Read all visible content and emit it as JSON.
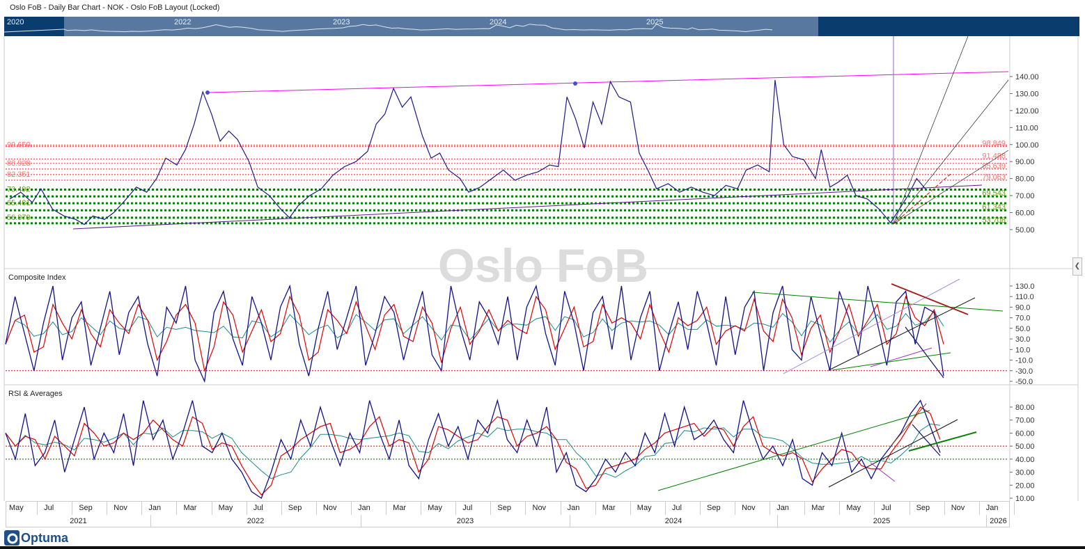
{
  "window": {
    "title": "Oslo FoB - Daily Bar Chart - NOK - Oslo FoB Layout (Locked)"
  },
  "navigator": {
    "years": [
      "2020",
      "2022",
      "2023",
      "2024",
      "2025"
    ]
  },
  "watermark": "Oslo FoB",
  "panels": {
    "composite": "Composite Index",
    "rsi": "RSI & Averages"
  },
  "logo": "Optuma",
  "colors": {
    "price": "#1a1a8c",
    "fast": "#e00000",
    "slow": "#1a8c8c",
    "fib_red": "#ff4040",
    "fib_green": "#008000"
  },
  "chart_data": [
    {
      "type": "line",
      "title": "Oslo FoB Daily",
      "ylim": [
        45,
        145
      ],
      "yticks": [
        "140.00",
        "130.00",
        "120.00",
        "110.00",
        "100.00",
        "90.00",
        "80.00",
        "70.00",
        "60.00",
        "50.00"
      ],
      "fib_left": [
        {
          "label": "99.650",
          "value": 99.65,
          "kind": "red"
        },
        {
          "label": "88.928",
          "value": 88.93,
          "kind": "red"
        },
        {
          "label": "82.351",
          "value": 82.35,
          "kind": "red"
        },
        {
          "label": "73.492",
          "value": 73.49,
          "kind": "green"
        },
        {
          "label": "65.481",
          "value": 65.48,
          "kind": "green"
        },
        {
          "label": "56.979",
          "value": 56.98,
          "kind": "green"
        }
      ],
      "fib_right": [
        {
          "label": "98.849",
          "value": 98.85,
          "kind": "red"
        },
        {
          "label": "91.488",
          "value": 91.49,
          "kind": "red"
        },
        {
          "label": "85.639",
          "value": 85.64,
          "kind": "red"
        },
        {
          "label": "79.063",
          "value": 79.06,
          "kind": "red"
        },
        {
          "label": "69.543",
          "value": 69.54,
          "kind": "green"
        },
        {
          "label": "61.343",
          "value": 61.34,
          "kind": "green"
        },
        {
          "label": "53.708",
          "value": 53.71,
          "kind": "green"
        }
      ],
      "series": [
        [
          "2021-05-01",
          68
        ],
        [
          "2021-05-20",
          72
        ],
        [
          "2021-06-10",
          66
        ],
        [
          "2021-06-25",
          74
        ],
        [
          "2021-07-15",
          62
        ],
        [
          "2021-08-05",
          58
        ],
        [
          "2021-08-25",
          56
        ],
        [
          "2021-09-10",
          53
        ],
        [
          "2021-09-25",
          58
        ],
        [
          "2021-10-15",
          56
        ],
        [
          "2021-11-01",
          60
        ],
        [
          "2021-11-20",
          67
        ],
        [
          "2021-12-10",
          75
        ],
        [
          "2021-12-28",
          72
        ],
        [
          "2022-01-15",
          80
        ],
        [
          "2022-02-01",
          92
        ],
        [
          "2022-02-20",
          88
        ],
        [
          "2022-03-05",
          97
        ],
        [
          "2022-03-20",
          112
        ],
        [
          "2022-04-05",
          131
        ],
        [
          "2022-04-20",
          118
        ],
        [
          "2022-05-05",
          102
        ],
        [
          "2022-05-20",
          108
        ],
        [
          "2022-06-05",
          103
        ],
        [
          "2022-06-25",
          90
        ],
        [
          "2022-07-10",
          75
        ],
        [
          "2022-07-30",
          70
        ],
        [
          "2022-08-20",
          62
        ],
        [
          "2022-09-05",
          57
        ],
        [
          "2022-09-20",
          64
        ],
        [
          "2022-10-10",
          70
        ],
        [
          "2022-10-30",
          74
        ],
        [
          "2022-11-20",
          82
        ],
        [
          "2022-12-10",
          87
        ],
        [
          "2022-12-30",
          90
        ],
        [
          "2023-01-20",
          96
        ],
        [
          "2023-02-05",
          112
        ],
        [
          "2023-02-20",
          118
        ],
        [
          "2023-03-05",
          133
        ],
        [
          "2023-03-20",
          122
        ],
        [
          "2023-04-05",
          128
        ],
        [
          "2023-04-25",
          105
        ],
        [
          "2023-05-10",
          92
        ],
        [
          "2023-05-25",
          95
        ],
        [
          "2023-06-10",
          85
        ],
        [
          "2023-06-30",
          80
        ],
        [
          "2023-07-15",
          72
        ],
        [
          "2023-08-05",
          75
        ],
        [
          "2023-08-25",
          80
        ],
        [
          "2023-09-15",
          85
        ],
        [
          "2023-10-05",
          79
        ],
        [
          "2023-10-25",
          82
        ],
        [
          "2023-11-15",
          84
        ],
        [
          "2023-12-05",
          88
        ],
        [
          "2023-12-20",
          87
        ],
        [
          "2024-01-05",
          128
        ],
        [
          "2024-01-20",
          115
        ],
        [
          "2024-02-05",
          98
        ],
        [
          "2024-02-20",
          125
        ],
        [
          "2024-03-05",
          112
        ],
        [
          "2024-03-20",
          137
        ],
        [
          "2024-04-05",
          128
        ],
        [
          "2024-04-25",
          125
        ],
        [
          "2024-05-10",
          95
        ],
        [
          "2024-05-25",
          85
        ],
        [
          "2024-06-10",
          74
        ],
        [
          "2024-06-30",
          77
        ],
        [
          "2024-07-20",
          72
        ],
        [
          "2024-08-10",
          75
        ],
        [
          "2024-08-30",
          72
        ],
        [
          "2024-09-20",
          70
        ],
        [
          "2024-10-10",
          76
        ],
        [
          "2024-10-30",
          74
        ],
        [
          "2024-11-15",
          85
        ],
        [
          "2024-12-05",
          88
        ],
        [
          "2024-12-25",
          84
        ],
        [
          "2025-01-05",
          138
        ],
        [
          "2025-01-20",
          100
        ],
        [
          "2025-02-05",
          93
        ],
        [
          "2025-02-25",
          91
        ],
        [
          "2025-03-15",
          80
        ],
        [
          "2025-03-25",
          97
        ],
        [
          "2025-04-10",
          75
        ],
        [
          "2025-04-25",
          78
        ],
        [
          "2025-05-10",
          82
        ],
        [
          "2025-05-25",
          70
        ],
        [
          "2025-06-15",
          68
        ],
        [
          "2025-07-05",
          62
        ],
        [
          "2025-07-25",
          54
        ],
        [
          "2025-08-10",
          62
        ],
        [
          "2025-08-25",
          70
        ],
        [
          "2025-09-10",
          80
        ],
        [
          "2025-09-25",
          74
        ]
      ]
    },
    {
      "type": "line",
      "title": "Composite Index",
      "ylim": [
        -52,
        140
      ],
      "ref_lines": [
        -30
      ],
      "yticks": [
        "130.0",
        "110.0",
        "90.0",
        "70.0",
        "50.0",
        "30.0",
        "10.0",
        "-10.0",
        "-30.0",
        "-50.0"
      ],
      "values": [
        20,
        110,
        40,
        -30,
        60,
        130,
        -10,
        70,
        100,
        -20,
        50,
        120,
        0,
        80,
        110,
        20,
        -40,
        90,
        60,
        130,
        -10,
        -50,
        80,
        120,
        30,
        -20,
        110,
        60,
        -10,
        90,
        130,
        20,
        -40,
        50,
        120,
        10,
        70,
        130,
        -20,
        40,
        110,
        80,
        -10,
        60,
        120,
        0,
        -30,
        130,
        50,
        -10,
        100,
        70,
        20,
        110,
        -10,
        90,
        130,
        40,
        -20,
        120,
        60,
        -30,
        80,
        110,
        10,
        130,
        -10,
        70,
        120,
        -30,
        40,
        100,
        10,
        120,
        60,
        -20,
        110,
        0,
        90,
        120,
        -30,
        80,
        130,
        10,
        -10,
        110,
        40,
        -30,
        120,
        70,
        0,
        130,
        60,
        -20,
        100,
        120,
        20,
        90,
        80,
        -40
      ]
    },
    {
      "type": "line",
      "title": "RSI & Averages",
      "ylim": [
        8,
        92
      ],
      "ref_lines": [
        50,
        40
      ],
      "yticks": [
        "80.00",
        "70.00",
        "60.00",
        "50.00",
        "40.00",
        "30.00",
        "20.00",
        "10.00"
      ],
      "values": [
        60,
        40,
        75,
        35,
        45,
        70,
        30,
        55,
        80,
        40,
        60,
        45,
        75,
        35,
        85,
        55,
        70,
        40,
        60,
        85,
        50,
        45,
        60,
        40,
        30,
        15,
        10,
        30,
        55,
        40,
        70,
        50,
        80,
        55,
        35,
        60,
        45,
        85,
        60,
        40,
        70,
        35,
        25,
        55,
        75,
        50,
        65,
        40,
        70,
        60,
        85,
        55,
        45,
        70,
        50,
        80,
        30,
        45,
        20,
        15,
        25,
        40,
        30,
        45,
        35,
        60,
        45,
        75,
        50,
        80,
        55,
        60,
        70,
        55,
        45,
        85,
        60,
        40,
        50,
        35,
        55,
        25,
        20,
        45,
        35,
        60,
        30,
        40,
        25,
        40,
        50,
        60,
        75,
        85,
        65,
        45
      ]
    }
  ],
  "xaxis": {
    "months": [
      "May",
      "Jul",
      "Sep",
      "Nov",
      "Jan",
      "Mar",
      "May",
      "Jul",
      "Sep",
      "Nov",
      "Jan",
      "Mar",
      "May",
      "Jul",
      "Sep",
      "Nov",
      "Jan",
      "Mar",
      "May",
      "Jul",
      "Sep",
      "Nov",
      "Jan",
      "Mar",
      "May",
      "Jul",
      "Sep",
      "Nov",
      "Jan"
    ],
    "years": [
      "2021",
      "2022",
      "2023",
      "2024",
      "2025",
      "2026"
    ]
  }
}
